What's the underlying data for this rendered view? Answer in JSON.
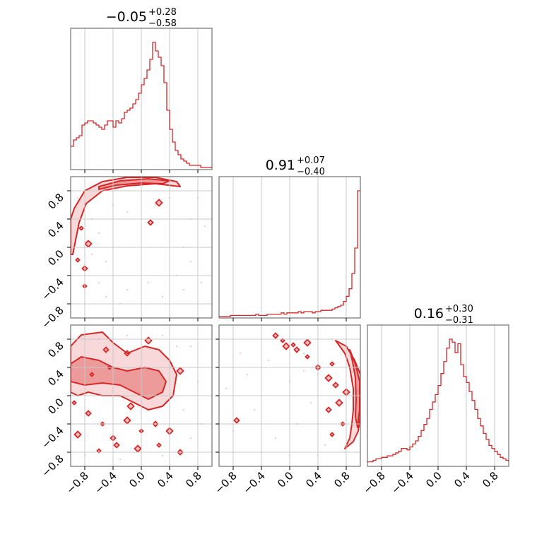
{
  "chart_data": {
    "type": "corner",
    "color": "#d62728",
    "grid": true,
    "tick_values": [
      -0.8,
      -0.4,
      0.0,
      0.4,
      0.8
    ],
    "tick_labels": [
      "−0.8",
      "−0.4",
      "0.0",
      "0.4",
      "0.8"
    ],
    "axis_range": [
      -1.0,
      1.0
    ],
    "parameters": [
      {
        "title": {
          "median": "−0.05",
          "plus": "+0.28",
          "minus": "−0.58"
        },
        "hist": {
          "bin_width": 0.04,
          "counts": [
            11,
            14,
            15,
            16,
            21,
            22,
            23,
            23,
            22,
            21,
            20,
            19,
            21,
            23,
            23,
            20,
            23,
            22,
            24,
            27,
            28,
            29,
            31,
            33,
            36,
            40,
            43,
            47,
            52,
            60,
            56,
            53,
            49,
            41,
            28,
            19,
            13,
            9,
            7,
            5,
            4,
            3,
            2,
            2,
            2,
            2,
            1,
            1,
            1,
            1
          ]
        }
      },
      {
        "title": {
          "median": "0.91",
          "plus": "+0.07",
          "minus": "−0.40"
        },
        "hist": {
          "bin_width": 0.04,
          "counts": [
            1,
            1,
            1,
            1,
            2,
            2,
            2,
            2,
            2,
            2,
            2,
            2,
            2,
            3,
            2,
            2,
            2,
            3,
            3,
            3,
            3,
            3,
            4,
            3,
            4,
            4,
            4,
            4,
            5,
            4,
            5,
            5,
            5,
            4,
            5,
            5,
            6,
            6,
            6,
            6,
            7,
            8,
            9,
            10,
            13,
            17,
            23,
            35,
            55,
            100
          ]
        }
      },
      {
        "title": {
          "median": "0.16",
          "plus": "+0.30",
          "minus": "−0.31"
        },
        "hist": {
          "bin_width": 0.04,
          "counts": [
            3,
            3,
            4,
            5,
            5,
            6,
            6,
            7,
            7,
            8,
            9,
            10,
            12,
            12,
            11,
            13,
            15,
            17,
            20,
            24,
            28,
            32,
            38,
            43,
            48,
            54,
            62,
            70,
            79,
            85,
            83,
            76,
            82,
            68,
            60,
            56,
            50,
            44,
            38,
            32,
            27,
            22,
            18,
            14,
            12,
            10,
            8,
            6,
            5,
            4
          ]
        }
      }
    ],
    "pairs": [
      {
        "x_param": 0,
        "y_param": 1,
        "description_free": true,
        "contours": [
          {
            "level": "outer",
            "points": [
              [
                -0.95,
                0.55
              ],
              [
                -0.8,
                0.8
              ],
              [
                -0.55,
                0.93
              ],
              [
                -0.2,
                0.99
              ],
              [
                0.2,
                0.99
              ],
              [
                0.5,
                0.93
              ],
              [
                0.55,
                0.86
              ],
              [
                0.2,
                0.9
              ],
              [
                -0.2,
                0.87
              ],
              [
                -0.55,
                0.8
              ],
              [
                -0.78,
                0.62
              ],
              [
                -0.88,
                0.35
              ],
              [
                -0.93,
                0.1
              ],
              [
                -0.97,
                -0.1
              ],
              [
                -1.0,
                -0.1
              ],
              [
                -1.0,
                0.4
              ]
            ]
          },
          {
            "level": "inner",
            "points": [
              [
                -0.6,
                0.86
              ],
              [
                -0.3,
                0.94
              ],
              [
                0.1,
                0.97
              ],
              [
                0.4,
                0.94
              ],
              [
                0.3,
                0.9
              ],
              [
                0.0,
                0.91
              ],
              [
                -0.35,
                0.88
              ],
              [
                -0.6,
                0.82
              ]
            ]
          }
        ],
        "islands": [
          [
            -0.9,
            -0.18
          ],
          [
            -0.8,
            -0.3
          ],
          [
            -0.75,
            0.05
          ],
          [
            -0.85,
            0.27
          ],
          [
            0.13,
            0.35
          ],
          [
            0.25,
            0.63
          ],
          [
            -0.8,
            -0.55
          ]
        ],
        "scatter": [
          [
            -0.8,
            0.6
          ],
          [
            -0.7,
            0.4
          ],
          [
            -0.6,
            0.2
          ],
          [
            -0.7,
            -0.1
          ],
          [
            -0.6,
            -0.5
          ],
          [
            -0.5,
            -0.7
          ],
          [
            -0.3,
            -0.8
          ],
          [
            0.0,
            -0.8
          ],
          [
            0.3,
            -0.7
          ],
          [
            0.5,
            -0.4
          ],
          [
            0.6,
            0.0
          ],
          [
            0.7,
            0.4
          ],
          [
            0.8,
            0.7
          ],
          [
            -0.4,
            0.6
          ],
          [
            -0.2,
            0.5
          ],
          [
            0.2,
            0.6
          ],
          [
            0.4,
            0.7
          ],
          [
            -0.5,
            -0.2
          ],
          [
            0.1,
            -0.5
          ],
          [
            -0.2,
            -0.6
          ],
          [
            0.6,
            -0.6
          ],
          [
            0.7,
            -0.2
          ],
          [
            -0.9,
            0.7
          ],
          [
            0.9,
            0.3
          ],
          [
            0.85,
            -0.5
          ]
        ]
      },
      {
        "x_param": 0,
        "y_param": 2,
        "contours": [
          {
            "level": "outer",
            "points": [
              [
                -1.0,
                0.7
              ],
              [
                -0.85,
                0.86
              ],
              [
                -0.55,
                0.9
              ],
              [
                -0.4,
                0.75
              ],
              [
                -0.2,
                0.6
              ],
              [
                0.05,
                0.7
              ],
              [
                0.25,
                0.65
              ],
              [
                0.4,
                0.5
              ],
              [
                0.5,
                0.3
              ],
              [
                0.45,
                0.0
              ],
              [
                0.3,
                -0.15
              ],
              [
                0.1,
                -0.2
              ],
              [
                -0.1,
                -0.1
              ],
              [
                -0.3,
                0.0
              ],
              [
                -0.55,
                0.0
              ],
              [
                -0.75,
                0.05
              ],
              [
                -0.9,
                0.0
              ],
              [
                -1.0,
                0.05
              ]
            ]
          },
          {
            "level": "inner",
            "points": [
              [
                -1.0,
                0.45
              ],
              [
                -0.85,
                0.55
              ],
              [
                -0.6,
                0.5
              ],
              [
                -0.4,
                0.4
              ],
              [
                -0.2,
                0.35
              ],
              [
                0.05,
                0.4
              ],
              [
                0.25,
                0.35
              ],
              [
                0.35,
                0.2
              ],
              [
                0.3,
                0.05
              ],
              [
                0.1,
                -0.05
              ],
              [
                -0.1,
                0.05
              ],
              [
                -0.3,
                0.15
              ],
              [
                -0.55,
                0.18
              ],
              [
                -0.8,
                0.15
              ],
              [
                -1.0,
                0.2
              ]
            ]
          }
        ],
        "islands": [
          [
            -0.45,
            0.4
          ],
          [
            -0.2,
            0.6
          ],
          [
            0.1,
            0.78
          ],
          [
            -0.95,
            -0.1
          ],
          [
            -0.75,
            -0.25
          ],
          [
            -0.9,
            -0.55
          ],
          [
            -0.55,
            -0.4
          ],
          [
            -0.4,
            -0.6
          ],
          [
            -0.2,
            -0.35
          ],
          [
            0.0,
            -0.5
          ],
          [
            0.2,
            -0.4
          ],
          [
            0.4,
            -0.5
          ],
          [
            -0.6,
            -0.78
          ],
          [
            -0.35,
            -0.7
          ],
          [
            -0.05,
            -0.75
          ],
          [
            0.25,
            -0.7
          ],
          [
            0.55,
            -0.8
          ],
          [
            0.55,
            0.35
          ],
          [
            -0.7,
            0.3
          ],
          [
            -0.5,
            0.65
          ],
          [
            -0.15,
            -0.15
          ]
        ],
        "scatter": [
          [
            -0.8,
            -0.85
          ],
          [
            -0.3,
            -0.9
          ],
          [
            0.3,
            -0.85
          ],
          [
            0.7,
            -0.6
          ],
          [
            0.8,
            0.2
          ],
          [
            0.7,
            0.7
          ],
          [
            0.3,
            0.85
          ],
          [
            -0.2,
            0.85
          ],
          [
            0.6,
            -0.2
          ],
          [
            -0.6,
            0.8
          ],
          [
            0.85,
            -0.4
          ],
          [
            0.5,
            0.7
          ]
        ]
      },
      {
        "x_param": 1,
        "y_param": 2,
        "contours": [
          {
            "level": "outer",
            "points": [
              [
                0.65,
                0.78
              ],
              [
                0.8,
                0.7
              ],
              [
                0.92,
                0.5
              ],
              [
                1.0,
                0.3
              ],
              [
                1.0,
                -0.3
              ],
              [
                0.97,
                -0.5
              ],
              [
                0.9,
                -0.65
              ],
              [
                0.78,
                -0.75
              ],
              [
                0.85,
                -0.6
              ],
              [
                0.88,
                -0.4
              ],
              [
                0.9,
                -0.2
              ],
              [
                0.9,
                0.1
              ],
              [
                0.85,
                0.4
              ],
              [
                0.78,
                0.6
              ]
            ]
          },
          {
            "level": "inner",
            "points": [
              [
                0.85,
                0.65
              ],
              [
                0.93,
                0.45
              ],
              [
                0.99,
                0.2
              ],
              [
                0.99,
                -0.2
              ],
              [
                0.96,
                -0.45
              ],
              [
                0.93,
                -0.3
              ],
              [
                0.94,
                -0.05
              ],
              [
                0.93,
                0.25
              ],
              [
                0.89,
                0.48
              ]
            ]
          }
        ],
        "islands": [
          [
            -0.1,
            0.78
          ],
          [
            -0.2,
            0.85
          ],
          [
            -0.05,
            0.7
          ],
          [
            0.05,
            0.72
          ],
          [
            0.1,
            0.65
          ],
          [
            0.25,
            0.75
          ],
          [
            0.25,
            0.55
          ],
          [
            0.4,
            0.4
          ],
          [
            0.55,
            0.25
          ],
          [
            0.6,
            0.45
          ],
          [
            0.65,
            0.15
          ],
          [
            0.7,
            -0.1
          ],
          [
            0.75,
            -0.4
          ],
          [
            0.55,
            -0.2
          ],
          [
            0.8,
            0.05
          ],
          [
            0.6,
            -0.55
          ],
          [
            -0.75,
            -0.35
          ]
        ],
        "scatter": [
          [
            -0.9,
            0.1
          ],
          [
            -0.8,
            -0.5
          ],
          [
            -0.6,
            0.3
          ],
          [
            -0.5,
            -0.2
          ],
          [
            -0.3,
            0.5
          ],
          [
            -0.2,
            -0.6
          ],
          [
            0.0,
            0.2
          ],
          [
            0.1,
            -0.4
          ],
          [
            0.2,
            0.6
          ],
          [
            0.3,
            -0.1
          ],
          [
            0.4,
            0.3
          ],
          [
            0.5,
            -0.7
          ],
          [
            -0.4,
            -0.8
          ],
          [
            0.6,
            0.8
          ],
          [
            0.4,
            -0.85
          ],
          [
            -0.7,
            0.6
          ],
          [
            0.0,
            -0.85
          ],
          [
            0.2,
            0.35
          ]
        ]
      }
    ]
  }
}
